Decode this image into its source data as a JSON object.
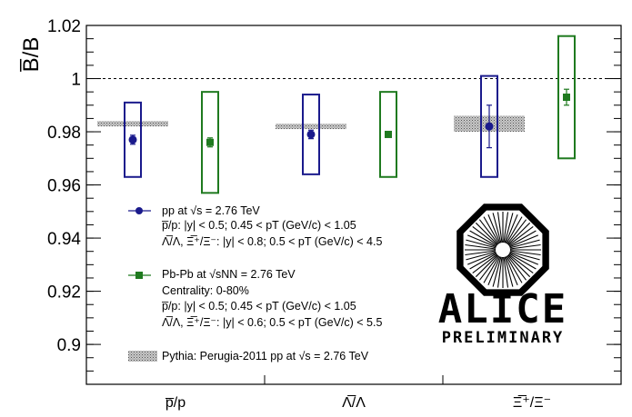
{
  "chart_data": {
    "type": "scatter",
    "ylabel": "B̅/B",
    "ylim": [
      0.885,
      1.02
    ],
    "yticks": [
      "0.9",
      "0.92",
      "0.94",
      "0.96",
      "0.98",
      "1",
      "1.02"
    ],
    "categories": [
      "p̅/p",
      "Λ̅/Λ",
      "Ξ̅⁺/Ξ⁻"
    ],
    "reference_line": 1.0,
    "series": [
      {
        "name": "pp at √s = 2.76 TeV",
        "color": "#1a1a8c",
        "marker": "circle",
        "values": [
          0.977,
          0.979,
          0.982
        ],
        "stat_err": [
          0.0017,
          0.0016,
          0.008
        ],
        "syst_low": [
          0.963,
          0.964,
          0.963
        ],
        "syst_high": [
          0.991,
          0.994,
          1.001
        ]
      },
      {
        "name": "Pb-Pb at √sNN = 2.76 TeV",
        "color": "#1f7a1f",
        "marker": "square",
        "values": [
          0.976,
          0.979,
          0.993
        ],
        "stat_err": [
          0.0017,
          0.0008,
          0.003
        ],
        "syst_low": [
          0.957,
          0.963,
          0.97
        ],
        "syst_high": [
          0.995,
          0.995,
          1.016
        ]
      },
      {
        "name": "Pythia: Perugia-2011 pp at √s = 2.76 TeV",
        "color": "#888888",
        "marker": "band",
        "band_low": [
          0.982,
          0.981,
          0.98
        ],
        "band_high": [
          0.984,
          0.983,
          0.986
        ]
      }
    ]
  },
  "legend": {
    "pp": {
      "title": "pp at √s = 2.76 TeV",
      "line1": "p̅/p: |y| < 0.5; 0.45 < pT (GeV/c) < 1.05",
      "line2": "Λ̅/Λ, Ξ̅⁺/Ξ⁻: |y| < 0.8; 0.5 < pT (GeV/c) < 4.5"
    },
    "pbpb": {
      "title": "Pb-Pb at √sNN = 2.76 TeV",
      "centrality": "Centrality: 0-80%",
      "line1": "p̅/p: |y| < 0.5; 0.45 < pT (GeV/c) < 1.05",
      "line2": "Λ̅/Λ, Ξ̅⁺/Ξ⁻: |y| < 0.6; 0.5 < pT (GeV/c) < 5.5"
    },
    "pythia": "Pythia: Perugia-2011 pp at √s = 2.76 TeV"
  },
  "logo": {
    "title": "ALICE",
    "subtitle": "PRELIMINARY"
  }
}
